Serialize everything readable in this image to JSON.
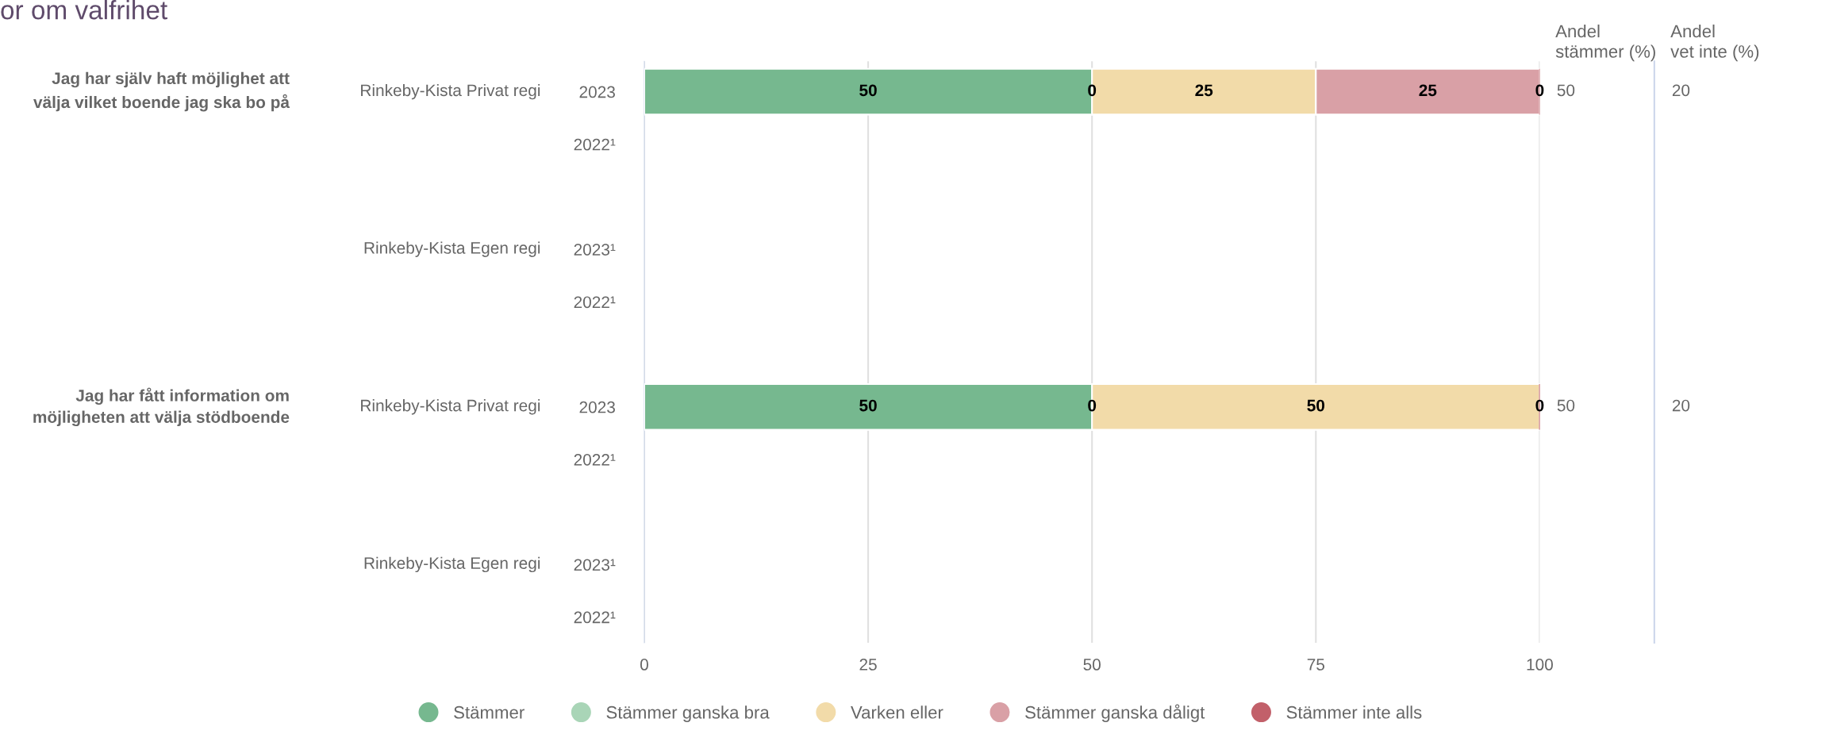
{
  "chart_data": {
    "type": "bar",
    "orientation": "horizontal",
    "stacked": true,
    "title": "or om valfrihet",
    "categories": [
      "2023",
      "2022¹",
      "2023¹",
      "2022¹",
      "2023",
      "2022¹",
      "2023¹",
      "2022¹"
    ],
    "series": [
      {
        "name": "Stämmer",
        "color": "#76b88f",
        "values": [
          50,
          null,
          null,
          null,
          50,
          null,
          null,
          null
        ],
        "value_labels": [
          "50",
          null,
          null,
          null,
          "50",
          null,
          null,
          null
        ]
      },
      {
        "name": "Stämmer ganska bra",
        "color": "#a9d5b7",
        "values": [
          0,
          null,
          null,
          null,
          0,
          null,
          null,
          null
        ],
        "value_labels": [
          "0",
          null,
          null,
          null,
          "0",
          null,
          null,
          null
        ]
      },
      {
        "name": "Varken eller",
        "color": "#f2dba9",
        "values": [
          25,
          null,
          null,
          null,
          50,
          null,
          null,
          null
        ],
        "value_labels": [
          "25",
          null,
          null,
          null,
          "50",
          null,
          null,
          null
        ]
      },
      {
        "name": "Stämmer ganska dåligt",
        "color": "#d9a0a6",
        "values": [
          25,
          null,
          null,
          null,
          0,
          null,
          null,
          null
        ],
        "value_labels": [
          "25",
          null,
          null,
          null,
          null,
          null,
          null,
          null
        ]
      },
      {
        "name": "Stämmer inte alls",
        "color": "#c2606a",
        "values": [
          0,
          null,
          null,
          null,
          0,
          null,
          null,
          null
        ],
        "value_labels": [
          "0",
          null,
          null,
          null,
          "0",
          null,
          null,
          null
        ]
      }
    ],
    "xlim": [
      0,
      100
    ],
    "xticks": [
      0,
      25,
      50,
      75,
      100
    ],
    "grid": "x",
    "legend": "bottom",
    "marker": "circle",
    "annotations": [
      "Jag har själv haft möjlighet att\nvälja vilket boende jag ska bo på",
      "Jag har fått information om\nmöjligheten att välja stödboende",
      "Rinkeby-Kista Privat regi",
      "Rinkeby-Kista Egen regi",
      "Rinkeby-Kista Privat regi",
      "Rinkeby-Kista Egen regi",
      "Andel\nstämmer (%)",
      "Andel\nvet inte (%)",
      "50",
      "20",
      "50",
      "20"
    ]
  }
}
